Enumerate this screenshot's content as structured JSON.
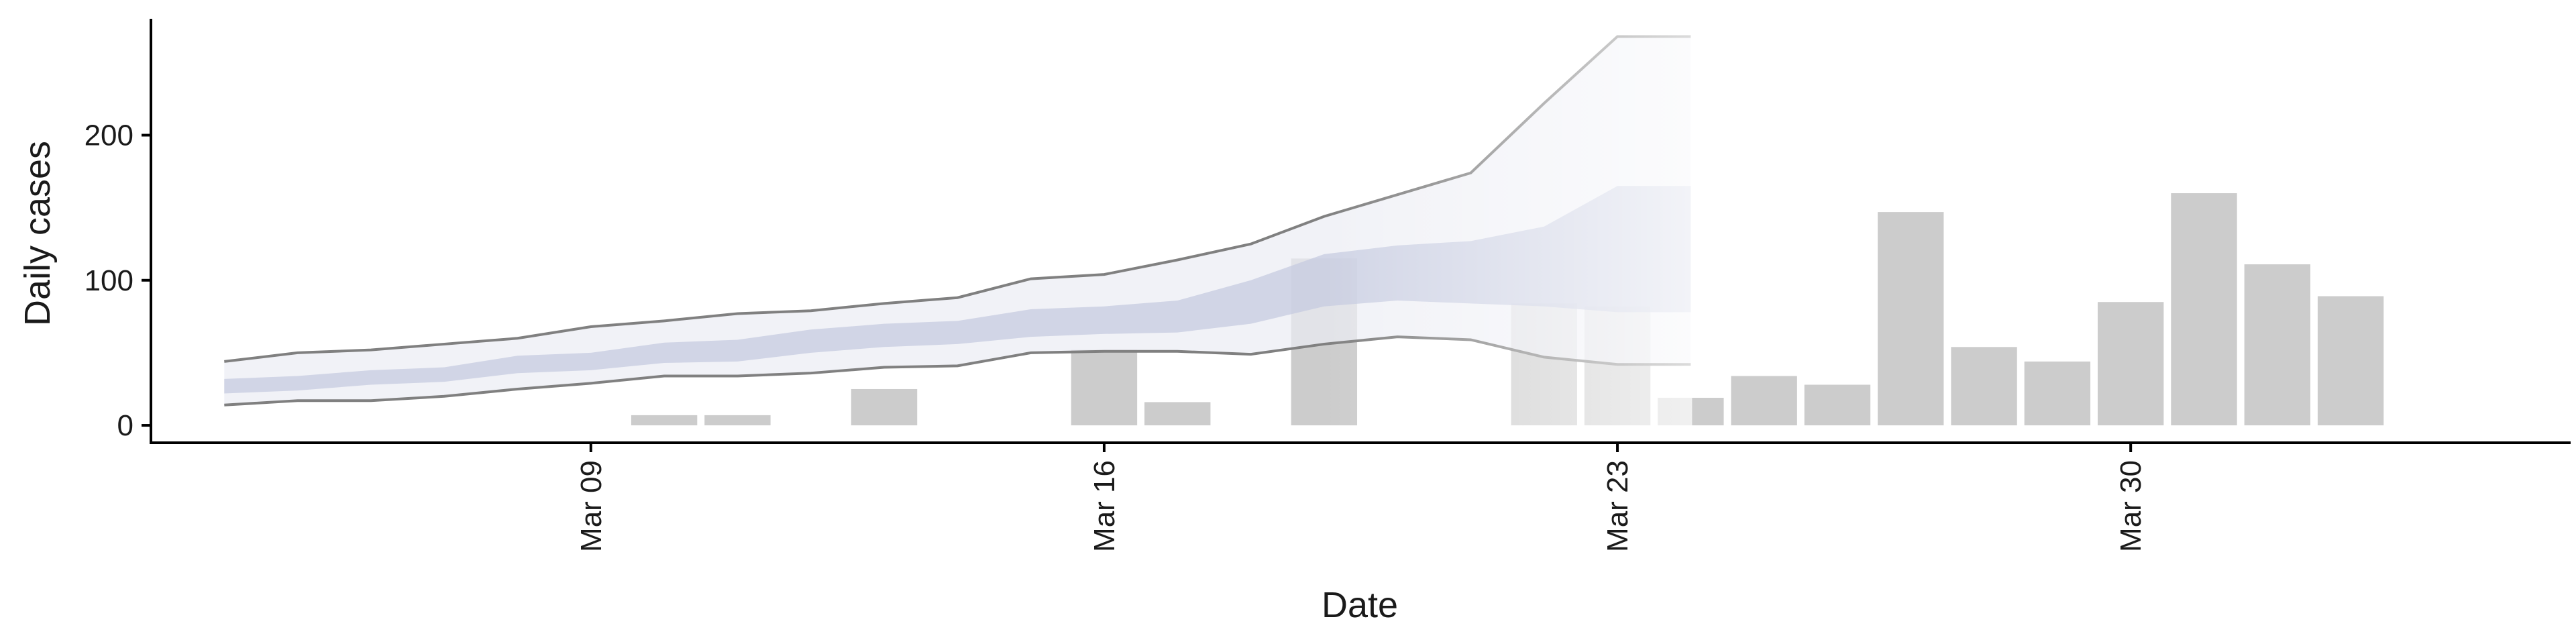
{
  "chart_data": {
    "type": "bar",
    "xlabel": "Date",
    "ylabel": "Daily cases",
    "x_tick_labels": [
      "Mar 09",
      "Mar 16",
      "Mar 23",
      "Mar 30"
    ],
    "x_tick_dates": [
      "2020-03-09",
      "2020-03-16",
      "2020-03-23",
      "2020-03-30"
    ],
    "y_ticks": [
      0,
      100,
      200
    ],
    "ylim": [
      -12,
      283
    ],
    "xlim": [
      "2020-03-03",
      "2020-04-05"
    ],
    "grid": false,
    "legend": "none",
    "bars": {
      "name": "",
      "color": "#cccccc",
      "points": [
        {
          "date": "2020-03-10",
          "value": 7
        },
        {
          "date": "2020-03-11",
          "value": 7
        },
        {
          "date": "2020-03-13",
          "value": 25
        },
        {
          "date": "2020-03-16",
          "value": 52
        },
        {
          "date": "2020-03-17",
          "value": 16
        },
        {
          "date": "2020-03-19",
          "value": 115
        },
        {
          "date": "2020-03-22",
          "value": 84
        },
        {
          "date": "2020-03-23",
          "value": 82
        },
        {
          "date": "2020-03-24",
          "value": 19
        },
        {
          "date": "2020-03-25",
          "value": 34
        },
        {
          "date": "2020-03-26",
          "value": 28
        },
        {
          "date": "2020-03-27",
          "value": 147
        },
        {
          "date": "2020-03-28",
          "value": 54
        },
        {
          "date": "2020-03-29",
          "value": 44
        },
        {
          "date": "2020-03-30",
          "value": 85
        },
        {
          "date": "2020-03-31",
          "value": 160
        },
        {
          "date": "2020-04-01",
          "value": 111
        },
        {
          "date": "2020-04-02",
          "value": 89
        }
      ]
    },
    "estimate": {
      "dates": [
        "2020-03-04",
        "2020-03-05",
        "2020-03-06",
        "2020-03-07",
        "2020-03-08",
        "2020-03-09",
        "2020-03-10",
        "2020-03-11",
        "2020-03-12",
        "2020-03-13",
        "2020-03-14",
        "2020-03-15",
        "2020-03-16",
        "2020-03-17",
        "2020-03-18",
        "2020-03-19",
        "2020-03-20",
        "2020-03-21",
        "2020-03-22",
        "2020-03-23",
        "2020-03-24"
      ],
      "upper90": [
        44,
        50,
        52,
        56,
        60,
        68,
        72,
        77,
        79,
        84,
        88,
        101,
        104,
        114,
        125,
        144,
        159,
        174,
        222,
        268,
        268
      ],
      "lower90": [
        14,
        17,
        17,
        20,
        25,
        29,
        34,
        34,
        36,
        40,
        41,
        50,
        51,
        51,
        49,
        56,
        61,
        59,
        47,
        42,
        42
      ],
      "upper50": [
        32,
        34,
        38,
        40,
        48,
        50,
        57,
        59,
        66,
        70,
        72,
        80,
        82,
        86,
        100,
        118,
        124,
        127,
        137,
        165,
        165
      ],
      "lower50": [
        22,
        24,
        28,
        30,
        36,
        38,
        43,
        44,
        50,
        54,
        56,
        61,
        63,
        64,
        70,
        82,
        86,
        84,
        82,
        78,
        78
      ],
      "inner_band_color": "#c5cbe0",
      "outer_band_color": "#ebecf3",
      "line_color": "#808080"
    },
    "shade_start": "2020-03-19"
  }
}
